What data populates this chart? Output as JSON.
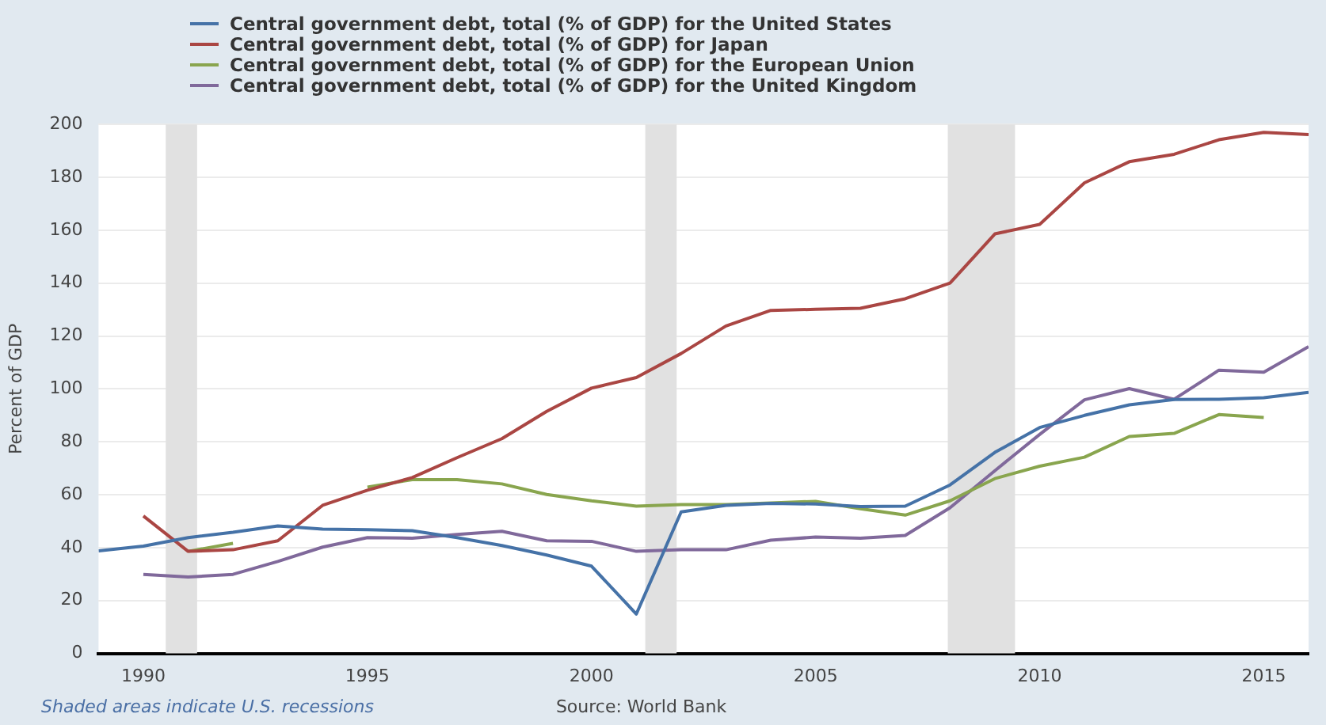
{
  "chart_data": {
    "type": "line",
    "ylabel": "Percent of GDP",
    "x": [
      1989,
      1990,
      1991,
      1992,
      1993,
      1994,
      1995,
      1996,
      1997,
      1998,
      1999,
      2000,
      2001,
      2002,
      2003,
      2004,
      2005,
      2006,
      2007,
      2008,
      2009,
      2010,
      2011,
      2012,
      2013,
      2014,
      2015,
      2016
    ],
    "series": [
      {
        "name": "Central government debt, total (% of GDP) for the United States",
        "color": "#4572a7",
        "values": [
          38.8,
          40.6,
          43.8,
          45.8,
          48.2,
          47,
          46.8,
          46.4,
          43.8,
          40.8,
          37.2,
          33,
          14.9,
          53.5,
          56,
          56.7,
          56.5,
          55.5,
          55.7,
          63.7,
          76,
          85.4,
          90,
          94,
          96,
          96.1,
          96.7,
          98.7
        ]
      },
      {
        "name": "Central government debt, total (% of GDP) for Japan",
        "color": "#aa4643",
        "values": [
          null,
          52,
          38.6,
          39.2,
          42.6,
          56,
          61.7,
          66.5,
          74,
          81.2,
          91.5,
          100.3,
          104.3,
          113.4,
          123.8,
          129.7,
          130.1,
          130.5,
          134.1,
          140,
          158.6,
          162.2,
          177.9,
          185.9,
          188.7,
          194.2,
          197,
          196.2
        ]
      },
      {
        "name": "Central government debt, total (% of GDP) for the European Union",
        "color": "#89a54e",
        "values": [
          null,
          null,
          38.6,
          41.6,
          null,
          null,
          62.9,
          65.7,
          65.7,
          64.1,
          60.1,
          57.7,
          55.7,
          56.3,
          56.3,
          56.9,
          57.5,
          54.7,
          52.3,
          57.7,
          66.1,
          70.8,
          74.2,
          82,
          83.2,
          90.3,
          89.2,
          null
        ]
      },
      {
        "name": "Central government debt, total (% of GDP) for the United Kingdom",
        "color": "#80699b",
        "values": [
          null,
          29.9,
          28.9,
          29.9,
          34.8,
          40.2,
          43.8,
          43.6,
          45,
          46.2,
          42.6,
          42.4,
          38.6,
          39.2,
          39.2,
          42.8,
          44,
          43.6,
          44.6,
          55.1,
          69.1,
          82.8,
          95.9,
          100.1,
          96.1,
          107.1,
          106.3,
          116
        ]
      }
    ],
    "xlim": [
      1989,
      2016
    ],
    "xticks": [
      1990,
      1995,
      2000,
      2005,
      2010,
      2015
    ],
    "ylim": [
      0,
      200
    ],
    "yticks": [
      0,
      20,
      40,
      60,
      80,
      100,
      120,
      140,
      160,
      180,
      200
    ],
    "bands": [
      {
        "axis": "x",
        "from": 1990.5,
        "to": 1991.2,
        "color": "#e1e1e1"
      },
      {
        "axis": "x",
        "from": 2001.2,
        "to": 2001.9,
        "color": "#e1e1e1"
      },
      {
        "axis": "x",
        "from": 2007.95,
        "to": 2009.45,
        "color": "#e1e1e1"
      }
    ],
    "annotations": [
      "Shaded areas indicate U.S. recessions",
      "Source: World Bank"
    ],
    "grid": "y",
    "legend": "top left",
    "marker": "none",
    "line_style": "solid"
  }
}
